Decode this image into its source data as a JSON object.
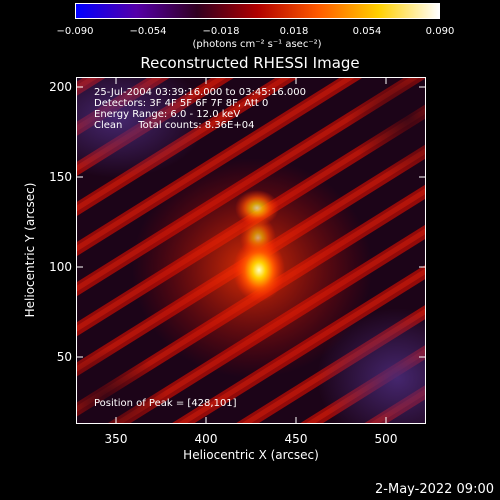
{
  "colorbar": {
    "ticks": [
      "−0.090",
      "−0.054",
      "−0.018",
      "0.018",
      "0.054",
      "0.090"
    ],
    "units": "(photons cm⁻² s⁻¹ asec⁻²)",
    "colors": [
      "#0000ff",
      "#5500a8",
      "#300020",
      "#b00000",
      "#ff5a00",
      "#ffd000",
      "#ffffff"
    ]
  },
  "title": "Reconstructed RHESSI Image",
  "annotations": {
    "time": "25-Jul-2004 03:39:16.000 to 03:45:16.000",
    "detectors": "Detectors: 3F 4F 5F 6F 7F 8F, Att 0",
    "energy": "Energy Range: 6.0 - 12.0 keV",
    "clean": "Clean     Total counts: 8.36E+04",
    "peak": "Position of Peak = [428,101]"
  },
  "x_axis": {
    "label": "Heliocentric X (arcsec)",
    "ticks": [
      "350",
      "400",
      "450",
      "500"
    ]
  },
  "y_axis": {
    "label": "Heliocentric Y (arcsec)",
    "ticks": [
      "200",
      "150",
      "100",
      "50"
    ]
  },
  "footer": {
    "timestamp": "2-May-2022 09:00"
  }
}
